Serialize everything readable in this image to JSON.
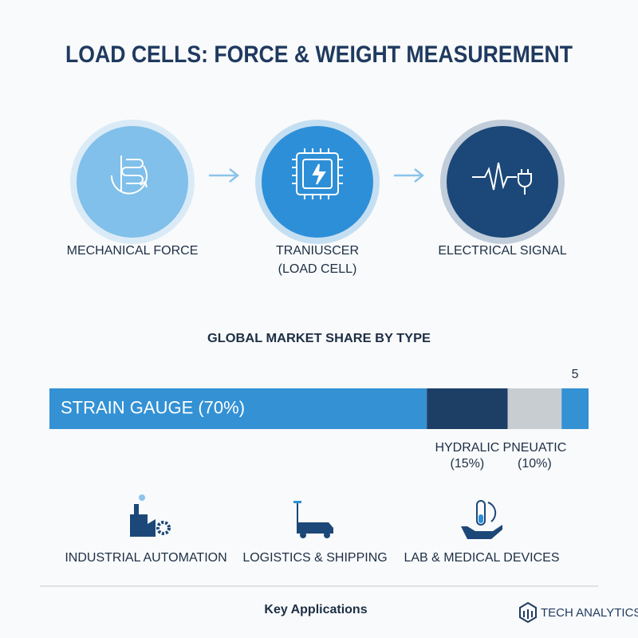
{
  "title": "LOAD CELLS: FORCE & WEIGHT MEASUREMENT",
  "process": {
    "steps": [
      {
        "label": [
          "MECHANICAL FORCE"
        ],
        "color": "#80c0ea"
      },
      {
        "label": [
          "TRANIUSCER",
          "(LOAD CELL)"
        ],
        "color": "#2d8fd8"
      },
      {
        "label": [
          "ELECTRICAL SIGNAL"
        ],
        "color": "#1b4878"
      }
    ]
  },
  "market_share": {
    "title": "GLOBAL MARKET SHARE BY TYPE",
    "xlim": [
      0,
      100
    ],
    "segments": [
      {
        "label": [
          "STRAIN GAUGE (70%)"
        ],
        "value": 70,
        "color": "#3391d4"
      },
      {
        "label": [
          "HYDRALIC",
          "(15%)"
        ],
        "value": 15,
        "color": "#1d3f66"
      },
      {
        "label": [
          "PNEUATIC",
          "(10%)"
        ],
        "value": 10,
        "color": "#c8cdd2"
      },
      {
        "label": [
          "5"
        ],
        "value": 5,
        "color": "#3391d4"
      }
    ]
  },
  "applications": {
    "title": "Key Applications",
    "items": [
      "INDUSTRIAL AUTOMATION",
      "LOGISTICS & SHIPPING",
      "LAB & MEDICAL DEVICES"
    ]
  },
  "brand": "TECH ANALYTICS"
}
